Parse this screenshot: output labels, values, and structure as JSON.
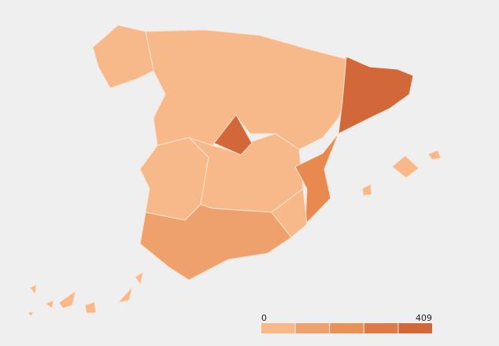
{
  "legend": {
    "min": 0,
    "max": 409,
    "colors": [
      "#f7b98a",
      "#eea06d",
      "#e89258",
      "#dd7a45",
      "#d2673a"
    ]
  }
}
